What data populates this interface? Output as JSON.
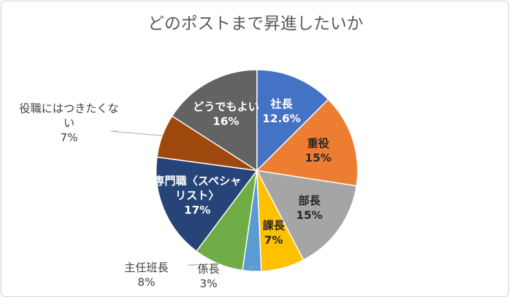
{
  "chart_data": {
    "type": "pie",
    "title": "どのポストまで昇進したいか",
    "categories": [
      "社長",
      "重役",
      "部長",
      "課長",
      "係長",
      "主任班長",
      "専門職〈スペシャリスト〉",
      "役職にはつきたくない",
      "どうでもよい"
    ],
    "values": [
      12.6,
      15,
      15,
      7,
      3,
      8,
      17,
      7,
      16
    ],
    "value_labels": [
      "12.6%",
      "15%",
      "15%",
      "7%",
      "3%",
      "8%",
      "17%",
      "7%",
      "16%"
    ],
    "colors": [
      "#4472c4",
      "#ed7d31",
      "#a5a5a5",
      "#ffc000",
      "#5b9bd5",
      "#70ad47",
      "#264478",
      "#9e480e",
      "#636363"
    ]
  }
}
